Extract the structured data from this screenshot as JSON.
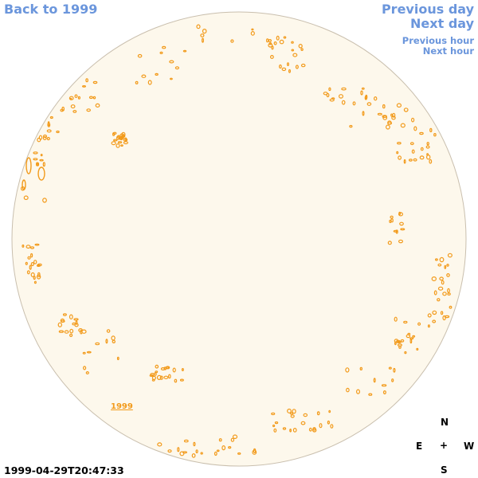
{
  "nav": {
    "back_label": "Back to 1999",
    "prev_day_label": "Previous day",
    "next_day_label": "Next day",
    "prev_hour_label": "Previous hour",
    "next_hour_label": "Next hour"
  },
  "sun": {
    "disk_color": "#fdf8ec",
    "limb_color": "#c9bfae",
    "feature_color": "#f29a1a",
    "feature_label": "1999",
    "feature_label_color": "#f29a1a"
  },
  "compass": {
    "north": "N",
    "east": "E",
    "center": "+",
    "west": "W",
    "south": "S"
  },
  "timestamp": "1999-04-29T20:47:33",
  "colors": {
    "link": "#6b96dc",
    "background": "#ffffff"
  }
}
